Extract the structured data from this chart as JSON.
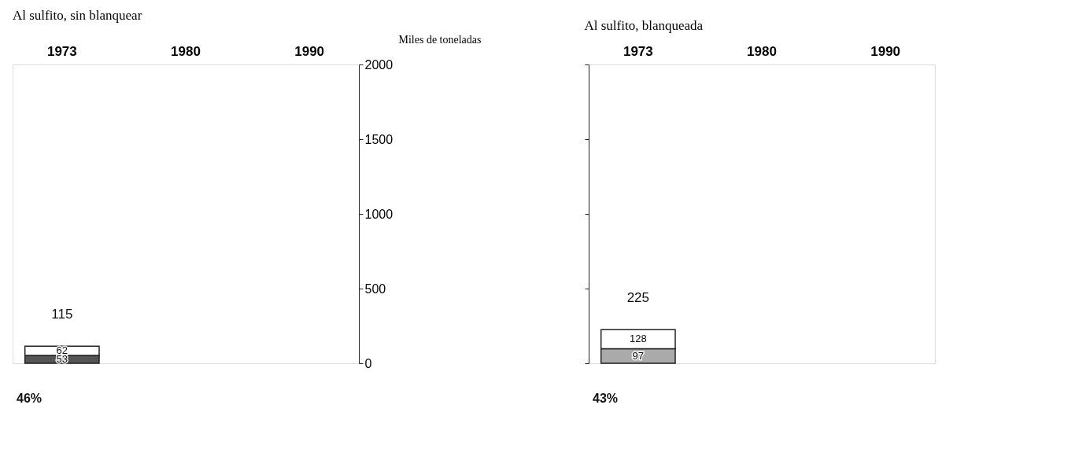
{
  "chart_data": [
    {
      "type": "bar",
      "title": "Al sulfito, sin blanquear",
      "ylabel": "Miles de toneladas",
      "categories": [
        "1973",
        "1980",
        "1990"
      ],
      "stacked": true,
      "series": [
        {
          "color": "#555555",
          "values": [
            53,
            null,
            null
          ]
        },
        {
          "color": "#ffffff",
          "values": [
            62,
            null,
            null
          ]
        }
      ],
      "ylim": [
        0,
        2000
      ],
      "yticks": [
        0,
        500,
        1000,
        1500,
        2000
      ],
      "grid": false,
      "data_labels": true,
      "totals": [
        "115",
        null,
        null
      ],
      "annotations": [
        "46%"
      ]
    },
    {
      "type": "bar",
      "title": "Al sulfito, blanqueada",
      "categories": [
        "1973",
        "1980",
        "1990"
      ],
      "stacked": true,
      "series": [
        {
          "color": "#aaaaaa",
          "values": [
            97,
            null,
            null
          ]
        },
        {
          "color": "#ffffff",
          "values": [
            128,
            null,
            null
          ]
        }
      ],
      "ylim": [
        0,
        2000
      ],
      "yticks": [
        0,
        500,
        1000,
        1500,
        2000
      ],
      "grid": false,
      "data_labels": true,
      "totals": [
        "225",
        null,
        null
      ],
      "annotations": [
        "43%"
      ],
      "tick_labels": "x"
    }
  ]
}
